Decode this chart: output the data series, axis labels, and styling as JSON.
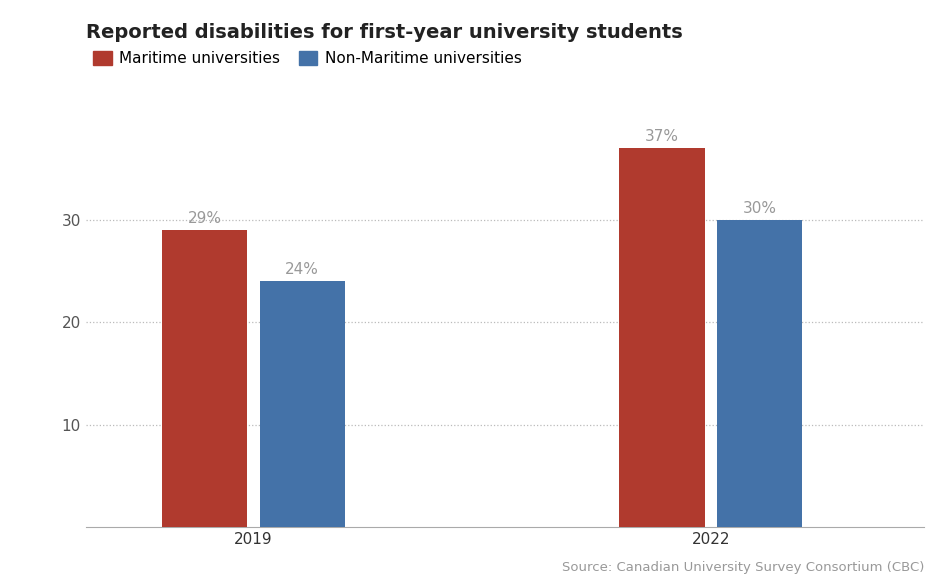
{
  "title": "Reported disabilities for first-year university students",
  "legend_labels": [
    "Maritime universities",
    "Non-Maritime universities"
  ],
  "legend_colors": [
    "#b03a2e",
    "#4472a8"
  ],
  "groups": [
    "2019",
    "2022"
  ],
  "maritime_values": [
    29,
    37
  ],
  "non_maritime_values": [
    24,
    30
  ],
  "ylim": [
    0,
    40
  ],
  "yticks": [
    10,
    20,
    30
  ],
  "bar_width": 0.28,
  "bar_gap": 0.04,
  "group_positions": [
    1.0,
    2.5
  ],
  "xlim": [
    0.45,
    3.2
  ],
  "background_color": "#ffffff",
  "grid_color": "#bbbbbb",
  "source_text": "Source: Canadian University Survey Consortium (CBC)",
  "title_fontsize": 14,
  "legend_fontsize": 11,
  "tick_fontsize": 11,
  "source_fontsize": 9.5,
  "annotation_color": "#999999",
  "spine_color": "#aaaaaa"
}
